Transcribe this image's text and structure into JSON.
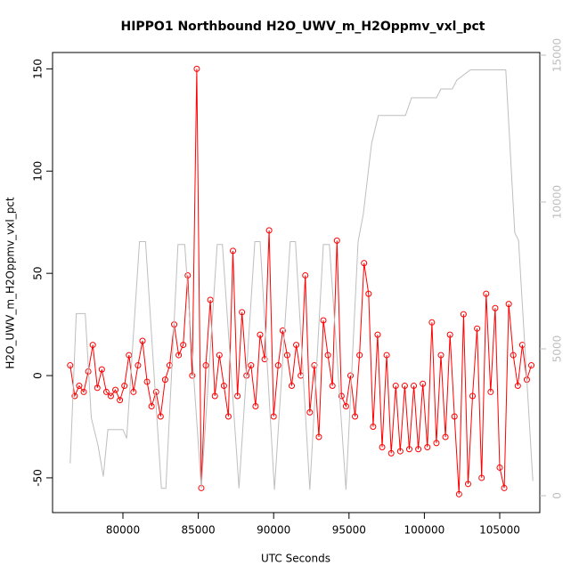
{
  "chart_data": {
    "type": "line",
    "title": "HIPPO1 Northbound H2O_UWV_m_H2Oppmv_vxl_pct",
    "x_label": "UTC Seconds",
    "y_label": "H2O_UWV_m_H2Oppmv_vxl_pct",
    "xlim": [
      75330,
      107660
    ],
    "xticks": [
      80000,
      85000,
      90000,
      95000,
      100000,
      105000
    ],
    "ylim": [
      -67,
      158
    ],
    "yticks": [
      -50,
      0,
      50,
      100,
      150
    ],
    "y2lim": [
      -576,
      15091
    ],
    "y2ticks": [
      0,
      5000,
      10000,
      15000
    ],
    "series": [
      {
        "color": "#ff0000",
        "markers": "open-circle",
        "x": [
          76500,
          76800,
          77100,
          77400,
          77700,
          78000,
          78300,
          78600,
          78900,
          79200,
          79500,
          79800,
          80100,
          80400,
          80700,
          81000,
          81300,
          81600,
          81900,
          82200,
          82500,
          82800,
          83100,
          83400,
          83700,
          84000,
          84300,
          84600,
          84900,
          85200,
          85500,
          85800,
          86100,
          86400,
          86700,
          87000,
          87300,
          87600,
          87900,
          88200,
          88500,
          88800,
          89100,
          89400,
          89700,
          90000,
          90300,
          90600,
          90900,
          91200,
          91500,
          91800,
          92100,
          92400,
          92700,
          93000,
          93300,
          93600,
          93900,
          94200,
          94500,
          94800,
          95100,
          95400,
          95700,
          96000,
          96300,
          96600,
          96900,
          97200,
          97500,
          97800,
          98100,
          98400,
          98700,
          99000,
          99300,
          99600,
          99900,
          100200,
          100500,
          100800,
          101100,
          101400,
          101700,
          102000,
          102300,
          102600,
          102900,
          103200,
          103500,
          103800,
          104100,
          104400,
          104700,
          105000,
          105300,
          105600,
          105900,
          106200,
          106500,
          106800,
          107100
        ],
        "values": [
          5,
          -10,
          -5,
          -8,
          2,
          15,
          -6,
          3,
          -8,
          -10,
          -7,
          -12,
          -5,
          10,
          -8,
          5,
          17,
          -3,
          -15,
          -8,
          -20,
          -2,
          5,
          25,
          10,
          15,
          49,
          0,
          150,
          -55,
          5,
          37,
          -10,
          10,
          -5,
          -20,
          61,
          -10,
          31,
          0,
          5,
          -15,
          20,
          8,
          71,
          -20,
          5,
          22,
          10,
          -5,
          15,
          0,
          49,
          -18,
          5,
          -30,
          27,
          10,
          -5,
          66,
          -10,
          -15,
          0,
          -20,
          10,
          55,
          40,
          -25,
          20,
          -35,
          10,
          -38,
          -5,
          -37,
          -5,
          -36,
          -5,
          -36,
          -4,
          -35,
          26,
          -33,
          10,
          -30,
          20,
          -20,
          -58,
          30,
          -53,
          -10,
          23,
          -50,
          40,
          -8,
          33,
          -45,
          -55,
          35,
          10,
          -5,
          15,
          -2,
          5
        ]
      },
      {
        "color": "#bebebe",
        "axis": "y2",
        "x": [
          76500,
          76900,
          77500,
          77900,
          78350,
          78700,
          79000,
          80000,
          80250,
          81100,
          81500,
          82550,
          82850,
          83650,
          84100,
          85200,
          86250,
          86600,
          87700,
          88750,
          89100,
          90050,
          91100,
          91450,
          92400,
          93300,
          93700,
          94800,
          95600,
          95950,
          96500,
          96950,
          98750,
          99150,
          100800,
          101100,
          101850,
          102150,
          103050,
          105400,
          106000,
          106250,
          107200
        ],
        "values": [
          1100,
          6200,
          6200,
          2650,
          1700,
          650,
          2250,
          2250,
          1950,
          8650,
          8650,
          250,
          250,
          8550,
          8550,
          250,
          8550,
          8550,
          250,
          8650,
          8650,
          200,
          8650,
          8650,
          200,
          8550,
          8550,
          200,
          8650,
          9600,
          12000,
          12950,
          12950,
          13550,
          13550,
          13850,
          13850,
          14150,
          14500,
          14500,
          8950,
          8700,
          500
        ]
      }
    ]
  }
}
